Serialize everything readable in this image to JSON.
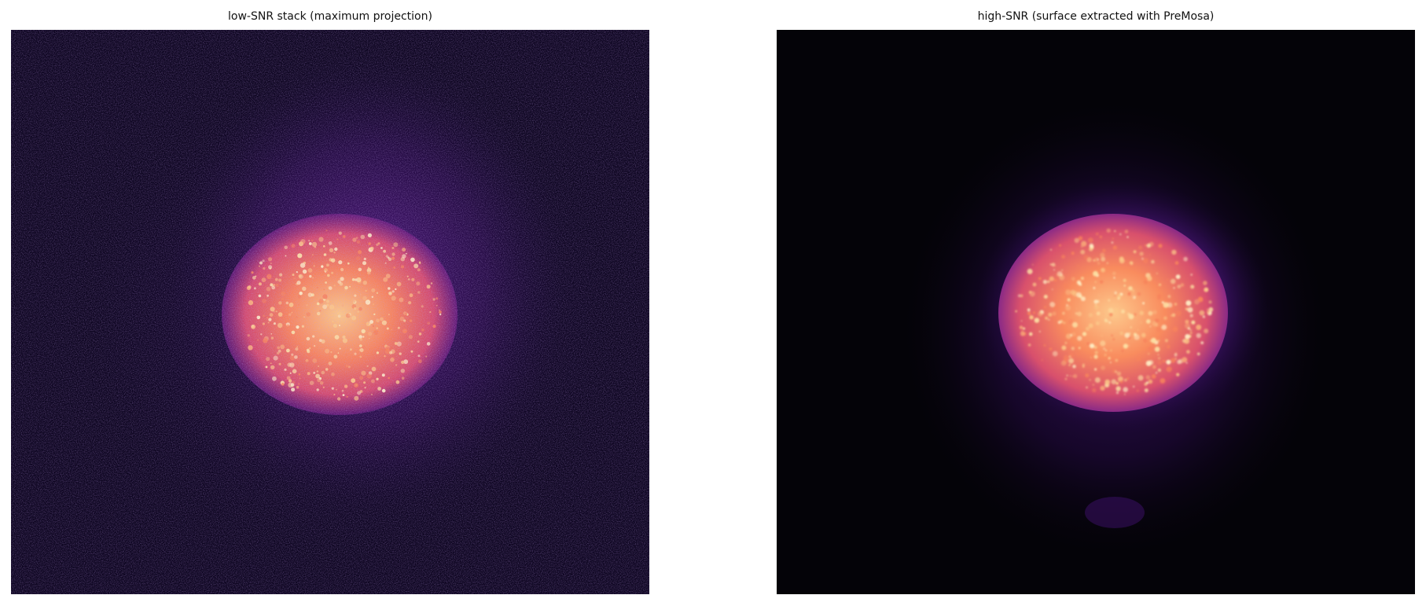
{
  "figure": {
    "panels": [
      {
        "title": "low-SNR stack (maximum projection)",
        "colormap": "magma",
        "noise": "high"
      },
      {
        "title": "high-SNR (surface extracted with PreMosa)",
        "colormap": "magma",
        "noise": "low"
      }
    ]
  },
  "colors": {
    "background_left": "#0d0520",
    "background_right": "#040308",
    "halo": "#4a167a",
    "core": "#f98c5e",
    "hot": "#fde3a6"
  }
}
